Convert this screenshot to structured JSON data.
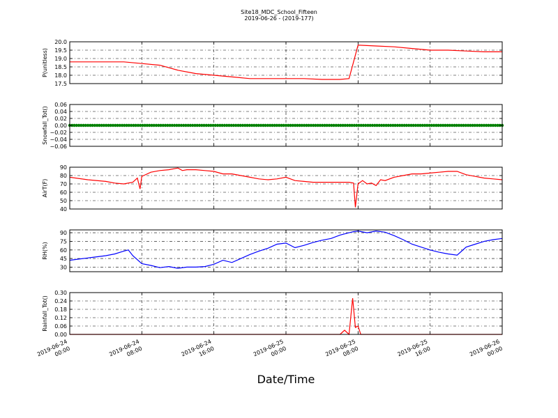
{
  "title": "Site18_MDC_School_Fifteen",
  "subtitle": "2019-06-26 - (2019-177)",
  "xlabel": "Date/Time",
  "x_ticks": [
    {
      "line1": "2019-06-24",
      "line2": "00:00"
    },
    {
      "line1": "2019-06-24",
      "line2": "08:00"
    },
    {
      "line1": "2019-06-24",
      "line2": "16:00"
    },
    {
      "line1": "2019-06-25",
      "line2": "00:00"
    },
    {
      "line1": "2019-06-25",
      "line2": "08:00"
    },
    {
      "line1": "2019-06-25",
      "line2": "16:00"
    },
    {
      "line1": "2019-06-26",
      "line2": "00:00"
    }
  ],
  "chart_data": [
    {
      "type": "line",
      "ylabel": "P(unitless)",
      "ylim": [
        17.5,
        20.0
      ],
      "yticks": [
        "17.5",
        "18.0",
        "18.5",
        "19.0",
        "19.5",
        "20.0"
      ],
      "grid": true,
      "color": "#ff0000",
      "x_hours": [
        0,
        2,
        4,
        6,
        8,
        10,
        12,
        14,
        16,
        18,
        20,
        22,
        24,
        26,
        28,
        30,
        31,
        31.5,
        32,
        34,
        36,
        38,
        40,
        42,
        44,
        46,
        48
      ],
      "values": [
        18.8,
        18.8,
        18.8,
        18.8,
        18.7,
        18.6,
        18.3,
        18.1,
        18.0,
        17.9,
        17.8,
        17.8,
        17.8,
        17.8,
        17.75,
        17.75,
        17.8,
        18.8,
        19.8,
        19.75,
        19.7,
        19.6,
        19.5,
        19.5,
        19.45,
        19.4,
        19.4
      ]
    },
    {
      "type": "scatter",
      "ylabel": "Snowfall_Tot()",
      "ylim": [
        -0.06,
        0.06
      ],
      "yticks": [
        "−0.06",
        "−0.04",
        "−0.02",
        "0.00",
        "0.02",
        "0.04",
        "0.06"
      ],
      "grid": true,
      "color": "#008000",
      "x_range_hours": [
        0,
        48
      ],
      "constant_value": 0.0
    },
    {
      "type": "line",
      "ylabel": "AirT(F)",
      "ylim": [
        40,
        90
      ],
      "yticks": [
        "40",
        "50",
        "60",
        "70",
        "80",
        "90"
      ],
      "grid": true,
      "color": "#ff0000",
      "x_hours": [
        0,
        2,
        4,
        5,
        6,
        7,
        7.5,
        7.8,
        8,
        8.2,
        9,
        10,
        11,
        12,
        12.5,
        13,
        14,
        15,
        16,
        17,
        18,
        19,
        20,
        21,
        22,
        23,
        24,
        25,
        26,
        27,
        28,
        29,
        30,
        31,
        31.5,
        31.7,
        32,
        32.5,
        33,
        33.5,
        34,
        34.5,
        35,
        36,
        37,
        38,
        39,
        40,
        41,
        42,
        43,
        44,
        45,
        46,
        47,
        48
      ],
      "values": [
        78,
        75,
        73,
        71,
        70,
        72,
        77,
        64,
        79,
        80,
        84,
        86,
        87,
        89,
        86,
        87,
        87,
        86,
        85,
        82,
        82,
        80,
        78,
        76,
        75,
        76,
        78,
        74,
        73,
        72,
        72,
        72,
        72,
        72,
        71,
        42,
        70,
        74,
        70,
        71,
        68,
        75,
        74,
        78,
        80,
        82,
        82,
        83,
        84,
        85,
        85,
        81,
        79,
        77,
        76,
        75
      ]
    },
    {
      "type": "line",
      "ylabel": "RH(%)",
      "ylim": [
        22,
        95
      ],
      "yticks": [
        "30",
        "45",
        "60",
        "75",
        "90"
      ],
      "grid": true,
      "color": "#0000ff",
      "x_hours": [
        0,
        1,
        2,
        3,
        4,
        5,
        6,
        6.5,
        7,
        8,
        9,
        10,
        11,
        12,
        13,
        14,
        15,
        16,
        17,
        18,
        19,
        20,
        21,
        22,
        23,
        24,
        25,
        26,
        27,
        28,
        29,
        30,
        31,
        31.5,
        32,
        33,
        34,
        35,
        36,
        37,
        38,
        39,
        40,
        41,
        42,
        43,
        44,
        45,
        46,
        47,
        48
      ],
      "values": [
        42,
        44,
        46,
        48,
        50,
        53,
        58,
        60,
        50,
        36,
        33,
        29,
        31,
        28,
        30,
        30,
        31,
        35,
        42,
        38,
        45,
        52,
        58,
        63,
        70,
        72,
        64,
        68,
        73,
        77,
        80,
        86,
        90,
        92,
        93,
        90,
        93,
        91,
        85,
        78,
        70,
        65,
        60,
        56,
        53,
        51,
        65,
        70,
        75,
        78,
        80
      ]
    },
    {
      "type": "line",
      "ylabel": "Rainfall_Tot()",
      "ylim": [
        0.0,
        0.3
      ],
      "yticks": [
        "0.00",
        "0.06",
        "0.12",
        "0.18",
        "0.24",
        "0.30"
      ],
      "grid": true,
      "color": "#ff0000",
      "x_hours": [
        0,
        30,
        30.5,
        31,
        31.4,
        31.7,
        32,
        32.3,
        32.5,
        48
      ],
      "values": [
        0.0,
        0.0,
        0.03,
        0.0,
        0.26,
        0.05,
        0.06,
        0.0,
        0.0,
        0.0
      ]
    }
  ]
}
